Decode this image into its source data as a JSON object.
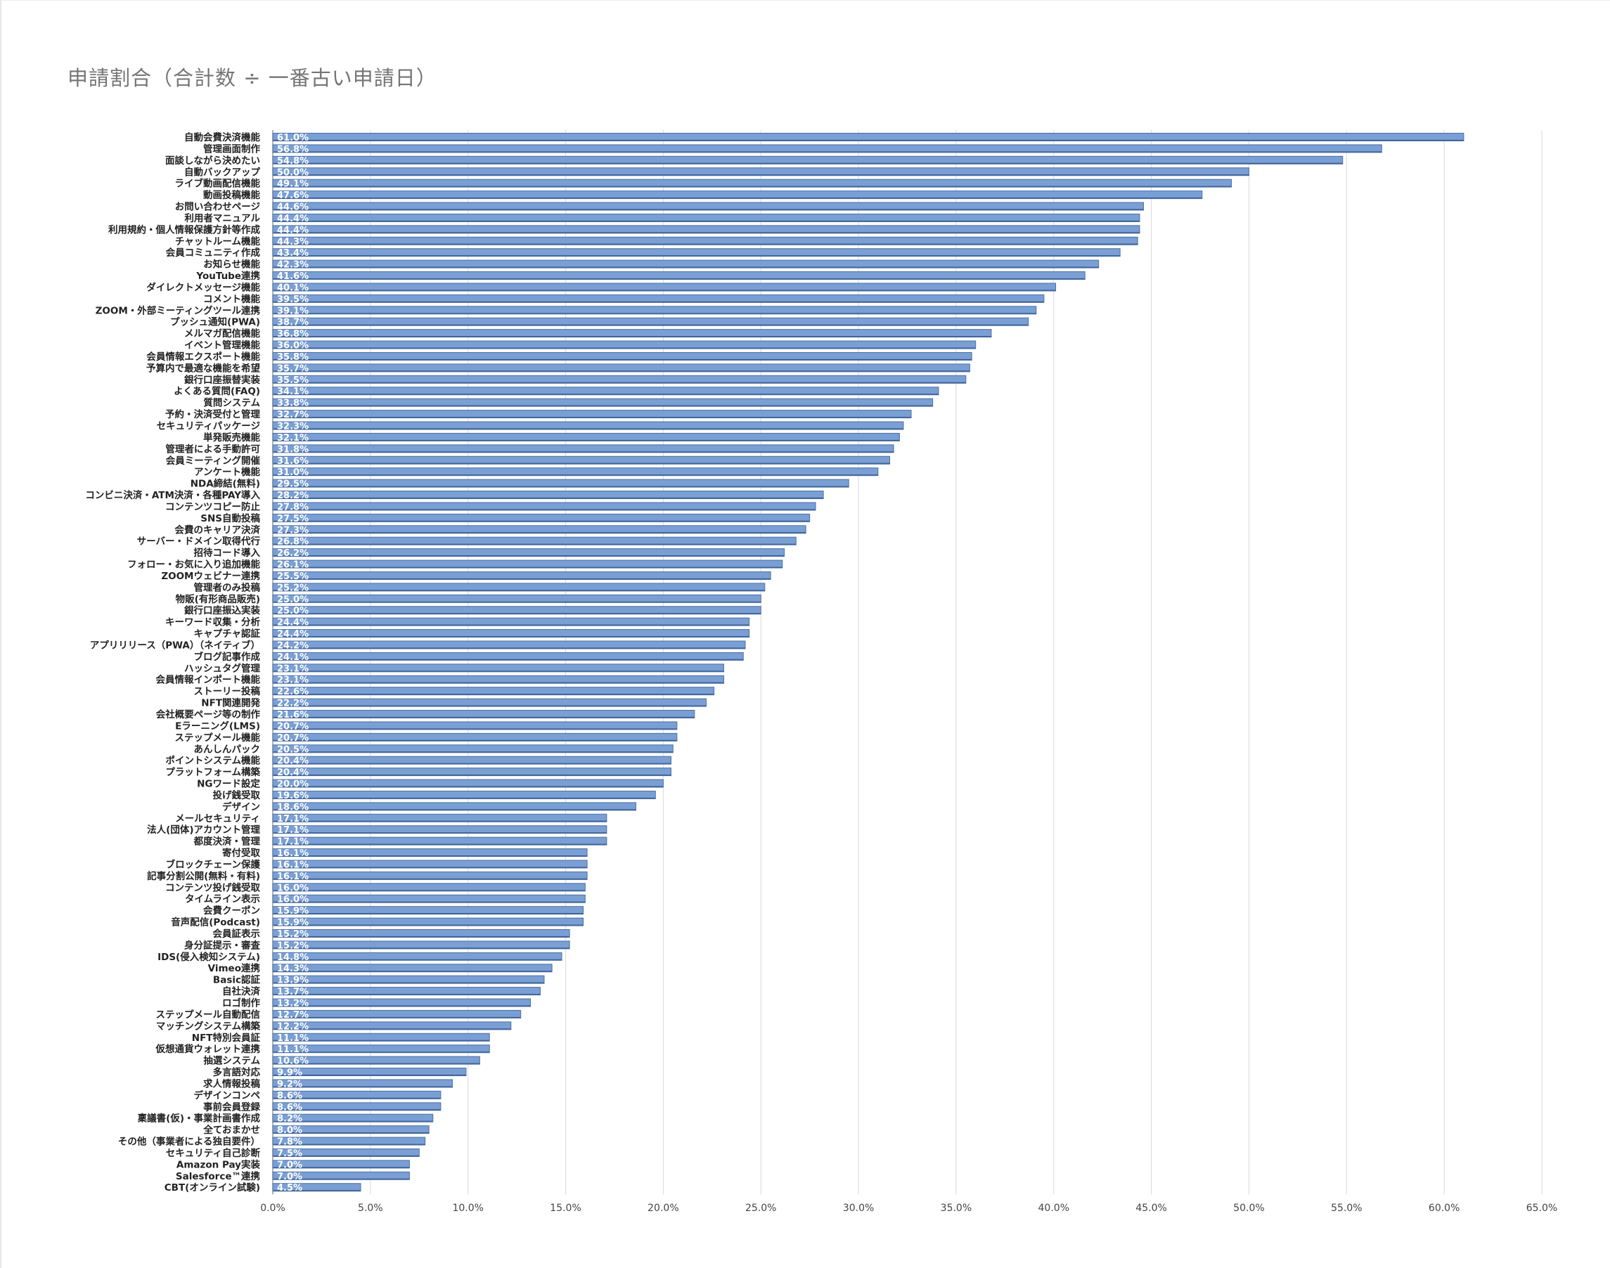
{
  "chart_data": {
    "type": "bar",
    "orientation": "horizontal",
    "title": "申請割合（合計数 ÷ 一番古い申請日）",
    "xlabel": "",
    "ylabel": "",
    "xlim": [
      0,
      65
    ],
    "x_ticks": [
      "0.0%",
      "5.0%",
      "10.0%",
      "15.0%",
      "20.0%",
      "25.0%",
      "30.0%",
      "35.0%",
      "40.0%",
      "45.0%",
      "50.0%",
      "55.0%",
      "60.0%",
      "65.0%"
    ],
    "grid": "vertical",
    "legend": "none",
    "bar_color": "#7a9fd4",
    "bar_edge_color": "#4a6fa5",
    "categories": [
      "自動会費決済機能",
      "管理画面制作",
      "面談しながら決めたい",
      "自動バックアップ",
      "ライブ動画配信機能",
      "動画投稿機能",
      "お問い合わせページ",
      "利用者マニュアル",
      "利用規約・個人情報保護方針等作成",
      "チャットルーム機能",
      "会員コミュニティ作成",
      "お知らせ機能",
      "YouTube連携",
      "ダイレクトメッセージ機能",
      "コメント機能",
      "ZOOM・外部ミーティングツール連携",
      "プッシュ通知(PWA)",
      "メルマガ配信機能",
      "イベント管理機能",
      "会員情報エクスポート機能",
      "予算内で最適な機能を希望",
      "銀行口座振替実装",
      "よくある質問(FAQ)",
      "質問システム",
      "予約・決済受付と管理",
      "セキュリティパッケージ",
      "単発販売機能",
      "管理者による手動許可",
      "会員ミーティング開催",
      "アンケート機能",
      "NDA締結(無料)",
      "コンビニ決済・ATM決済・各種PAY導入",
      "コンテンツコピー防止",
      "SNS自動投稿",
      "会費のキャリア決済",
      "サーバー・ドメイン取得代行",
      "招待コード導入",
      "フォロー・お気に入り追加機能",
      "ZOOMウェビナー連携",
      "管理者のみ投稿",
      "物販(有形商品販売)",
      "銀行口座振込実装",
      "キーワード収集・分析",
      "キャプチャ認証",
      "アプリリリース（PWA）（ネイティブ）",
      "ブログ記事作成",
      "ハッシュタグ管理",
      "会員情報インポート機能",
      "ストーリー投稿",
      "NFT関連開発",
      "会社概要ページ等の制作",
      "Eラーニング(LMS)",
      "ステップメール機能",
      "あんしんパック",
      "ポイントシステム機能",
      "プラットフォーム構築",
      "NGワード設定",
      "投げ銭受取",
      "デザイン",
      "メールセキュリティ",
      "法人(団体)アカウント管理",
      "都度決済・管理",
      "寄付受取",
      "ブロックチェーン保護",
      "記事分割公開(無料・有料)",
      "コンテンツ投げ銭受取",
      "タイムライン表示",
      "会費クーポン",
      "音声配信(Podcast)",
      "会員証表示",
      "身分証提示・審査",
      "IDS(侵入検知システム)",
      "Vimeo連携",
      "Basic認証",
      "自社決済",
      "ロゴ制作",
      "ステップメール自動配信",
      "マッチングシステム構築",
      "NFT特別会員証",
      "仮想通貨ウォレット連携",
      "抽選システム",
      "多言語対応",
      "求人情報投稿",
      "デザインコンペ",
      "事前会員登録",
      "稟議書(仮)・事業計画書作成",
      "全ておまかせ",
      "その他（事業者による独自要件）",
      "セキュリティ自己診断",
      "Amazon Pay実装",
      "Salesforce™連携",
      "CBT(オンライン試験)"
    ],
    "values": [
      61.0,
      56.8,
      54.8,
      50.0,
      49.1,
      47.6,
      44.6,
      44.4,
      44.4,
      44.3,
      43.4,
      42.3,
      41.6,
      40.1,
      39.5,
      39.1,
      38.7,
      36.8,
      36.0,
      35.8,
      35.7,
      35.5,
      34.1,
      33.8,
      32.7,
      32.3,
      32.1,
      31.8,
      31.6,
      31.0,
      29.5,
      28.2,
      27.8,
      27.5,
      27.3,
      26.8,
      26.2,
      26.1,
      25.5,
      25.2,
      25.0,
      25.0,
      24.4,
      24.4,
      24.2,
      24.1,
      23.1,
      23.1,
      22.6,
      22.2,
      21.6,
      20.7,
      20.7,
      20.5,
      20.4,
      20.4,
      20.0,
      19.6,
      18.6,
      17.1,
      17.1,
      17.1,
      16.1,
      16.1,
      16.1,
      16.0,
      16.0,
      15.9,
      15.9,
      15.2,
      15.2,
      14.8,
      14.3,
      13.9,
      13.7,
      13.2,
      12.7,
      12.2,
      11.1,
      11.1,
      10.6,
      9.9,
      9.2,
      8.6,
      8.6,
      8.2,
      8.0,
      7.8,
      7.5,
      7.0,
      7.0,
      4.5
    ],
    "data_labels": [
      "61.0%",
      "56.8%",
      "54.8%",
      "50.0%",
      "49.1%",
      "47.6%",
      "44.6%",
      "44.4%",
      "44.4%",
      "44.3%",
      "43.4%",
      "42.3%",
      "41.6%",
      "40.1%",
      "39.5%",
      "39.1%",
      "38.7%",
      "36.8%",
      "36.0%",
      "35.8%",
      "35.7%",
      "35.5%",
      "34.1%",
      "33.8%",
      "32.7%",
      "32.3%",
      "32.1%",
      "31.8%",
      "31.6%",
      "31.0%",
      "29.5%",
      "28.2%",
      "27.8%",
      "27.5%",
      "27.3%",
      "26.8%",
      "26.2%",
      "26.1%",
      "25.5%",
      "25.2%",
      "25.0%",
      "25.0%",
      "24.4%",
      "24.4%",
      "24.2%",
      "24.1%",
      "23.1%",
      "23.1%",
      "22.6%",
      "22.2%",
      "21.6%",
      "20.7%",
      "20.7%",
      "20.5%",
      "20.4%",
      "20.4%",
      "20.0%",
      "19.6%",
      "18.6%",
      "17.1%",
      "17.1%",
      "17.1%",
      "16.1%",
      "16.1%",
      "16.1%",
      "16.0%",
      "16.0%",
      "15.9%",
      "15.9%",
      "15.2%",
      "15.2%",
      "14.8%",
      "14.3%",
      "13.9%",
      "13.7%",
      "13.2%",
      "12.7%",
      "12.2%",
      "11.1%",
      "11.1%",
      "10.6%",
      "9.9%",
      "9.2%",
      "8.6%",
      "8.6%",
      "8.2%",
      "8.0%",
      "7.8%",
      "7.5%",
      "7.0%",
      "7.0%",
      "4.5%"
    ]
  }
}
